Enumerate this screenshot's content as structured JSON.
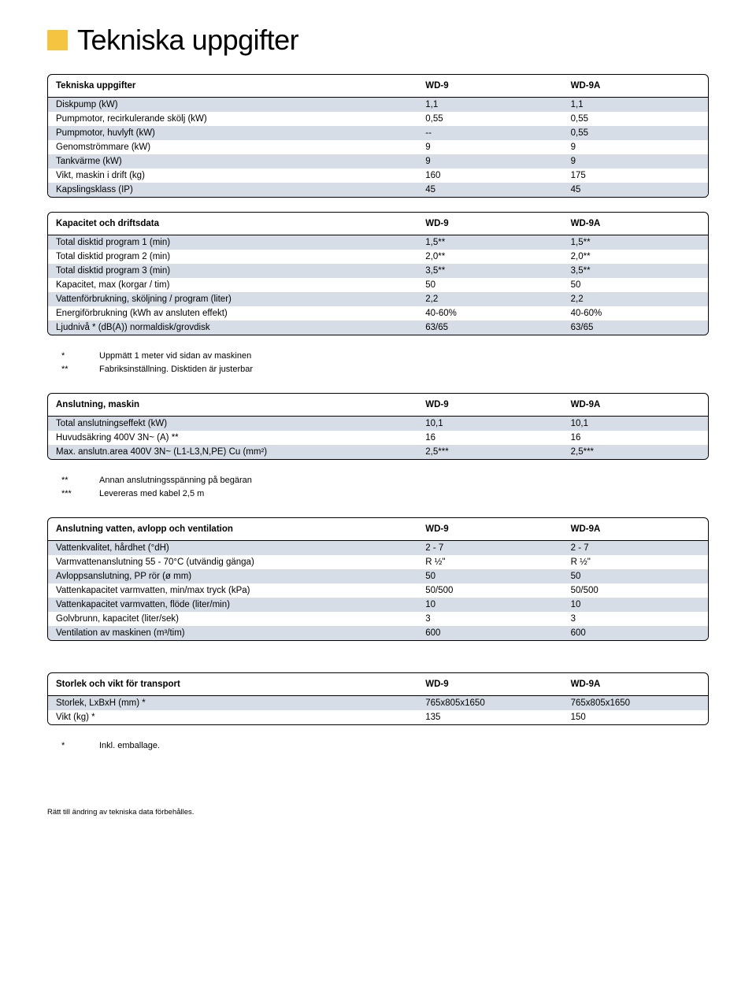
{
  "page": {
    "title": "Tekniska uppgifter",
    "footer": "Rätt till ändring av tekniska data förbehålles."
  },
  "colors": {
    "accent_square": "#f5c542",
    "row_stripe": "#d6dde6",
    "background": "#ffffff",
    "border": "#000000"
  },
  "tables": [
    {
      "header": {
        "label": "Tekniska uppgifter",
        "c1": "WD-9",
        "c2": "WD-9A"
      },
      "rows": [
        {
          "label": "Diskpump (kW)",
          "c1": "1,1",
          "c2": "1,1"
        },
        {
          "label": "Pumpmotor, recirkulerande skölj (kW)",
          "c1": "0,55",
          "c2": "0,55"
        },
        {
          "label": "Pumpmotor, huvlyft (kW)",
          "c1": "--",
          "c2": "0,55"
        },
        {
          "label": "Genomströmmare (kW)",
          "c1": "9",
          "c2": "9"
        },
        {
          "label": "Tankvärme (kW)",
          "c1": "9",
          "c2": "9"
        },
        {
          "label": "Vikt, maskin i drift (kg)",
          "c1": "160",
          "c2": "175"
        },
        {
          "label": "Kapslingsklass (IP)",
          "c1": "45",
          "c2": "45"
        }
      ]
    },
    {
      "header": {
        "label": "Kapacitet och driftsdata",
        "c1": "WD-9",
        "c2": "WD-9A"
      },
      "rows": [
        {
          "label": "Total disktid program 1 (min)",
          "c1": "1,5**",
          "c2": "1,5**"
        },
        {
          "label": "Total disktid program 2 (min)",
          "c1": "2,0**",
          "c2": "2,0**"
        },
        {
          "label": "Total disktid program 3 (min)",
          "c1": "3,5**",
          "c2": "3,5**"
        },
        {
          "label": "Kapacitet, max (korgar / tim)",
          "c1": "50",
          "c2": "50"
        },
        {
          "label": "Vattenförbrukning, sköljning / program (liter)",
          "c1": "2,2",
          "c2": "2,2"
        },
        {
          "label": "Energiförbrukning (kWh av ansluten effekt)",
          "c1": "40-60%",
          "c2": "40-60%"
        },
        {
          "label": "Ljudnivå * (dB(A)) normaldisk/grovdisk",
          "c1": "63/65",
          "c2": "63/65"
        }
      ],
      "notes": [
        {
          "sym": "*",
          "text": "Uppmätt 1 meter vid sidan av maskinen"
        },
        {
          "sym": "**",
          "text": "Fabriksinställning. Disktiden är justerbar"
        }
      ]
    },
    {
      "header": {
        "label": "Anslutning, maskin",
        "c1": "WD-9",
        "c2": "WD-9A"
      },
      "rows": [
        {
          "label": "Total anslutningseffekt (kW)",
          "c1": "10,1",
          "c2": "10,1"
        },
        {
          "label": "Huvudsäkring 400V 3N~ (A) **",
          "c1": "16",
          "c2": "16"
        },
        {
          "label": "Max. anslutn.area 400V 3N~ (L1-L3,N,PE) Cu (mm²)",
          "c1": "2,5***",
          "c2": "2,5***"
        }
      ],
      "notes": [
        {
          "sym": "**",
          "text": "Annan anslutningsspänning på begäran"
        },
        {
          "sym": "***",
          "text": "Levereras med kabel 2,5 m"
        }
      ]
    },
    {
      "header": {
        "label": "Anslutning vatten, avlopp och ventilation",
        "c1": "WD-9",
        "c2": "WD-9A"
      },
      "rows": [
        {
          "label": "Vattenkvalitet, hårdhet (°dH)",
          "c1": "2 - 7",
          "c2": "2 - 7"
        },
        {
          "label": "Varmvattenanslutning 55 - 70°C (utvändig gänga)",
          "c1": "R ½\"",
          "c2": "R ½\""
        },
        {
          "label": "Avloppsanslutning, PP rör (ø mm)",
          "c1": "50",
          "c2": "50"
        },
        {
          "label": "Vattenkapacitet varmvatten, min/max tryck (kPa)",
          "c1": "50/500",
          "c2": "50/500"
        },
        {
          "label": "Vattenkapacitet varmvatten, flöde (liter/min)",
          "c1": "10",
          "c2": "10"
        },
        {
          "label": "Golvbrunn, kapacitet (liter/sek)",
          "c1": "3",
          "c2": "3"
        },
        {
          "label": "Ventilation av maskinen (m³/tim)",
          "c1": "600",
          "c2": "600"
        }
      ]
    },
    {
      "header": {
        "label": "Storlek och vikt för transport",
        "c1": "WD-9",
        "c2": "WD-9A"
      },
      "rows": [
        {
          "label": "Storlek, LxBxH (mm) *",
          "c1": "765x805x1650",
          "c2": "765x805x1650"
        },
        {
          "label": "Vikt (kg) *",
          "c1": "135",
          "c2": "150"
        }
      ],
      "notes": [
        {
          "sym": "*",
          "text": "Inkl. emballage."
        }
      ],
      "extra_margin_top": true
    }
  ]
}
